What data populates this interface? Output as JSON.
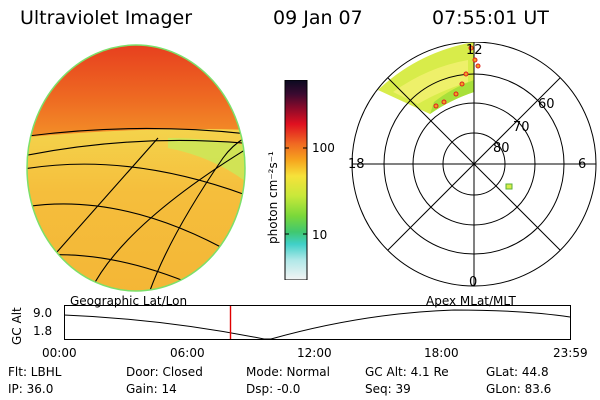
{
  "header": {
    "instrument": "Ultraviolet Imager",
    "date": "09 Jan 07",
    "time": "07:55:01 UT"
  },
  "colorbar": {
    "unit_label": "photon cm⁻²s⁻¹",
    "ticks": [
      "100",
      "10"
    ]
  },
  "polar": {
    "mlt_top": "12",
    "mlt_left": "18",
    "mlt_right": "6",
    "mlt_bottom": "0",
    "lat_labels": [
      "60",
      "70",
      "80"
    ]
  },
  "timeline": {
    "left_label": "Geographic Lat/Lon",
    "right_label": "Apex  MLat/MLT",
    "axis_title": "GC Alt",
    "y_max": "9.0",
    "y_min": "1.8",
    "x_ticks": [
      "00:00",
      "06:00",
      "12:00",
      "18:00",
      "23:59"
    ],
    "current_time_fraction": 0.329
  },
  "status": {
    "filter": "Flt: LBHL",
    "ip": "IP: 36.0",
    "door": "Door: Closed",
    "gain": "Gain: 14",
    "mode": "Mode: Normal",
    "dsp": "Dsp:    -0.0",
    "gc_alt": "GC Alt: 4.1 Re",
    "seq": "Seq: 39",
    "glat": "GLat:    44.8",
    "glon": "GLon:    83.6"
  },
  "colors": {
    "marker": "#e00000",
    "glow_high": "#e8281a",
    "glow_mid": "#f4a21e",
    "glow_low": "#f2e63a",
    "glow_green": "#a8e03a"
  }
}
